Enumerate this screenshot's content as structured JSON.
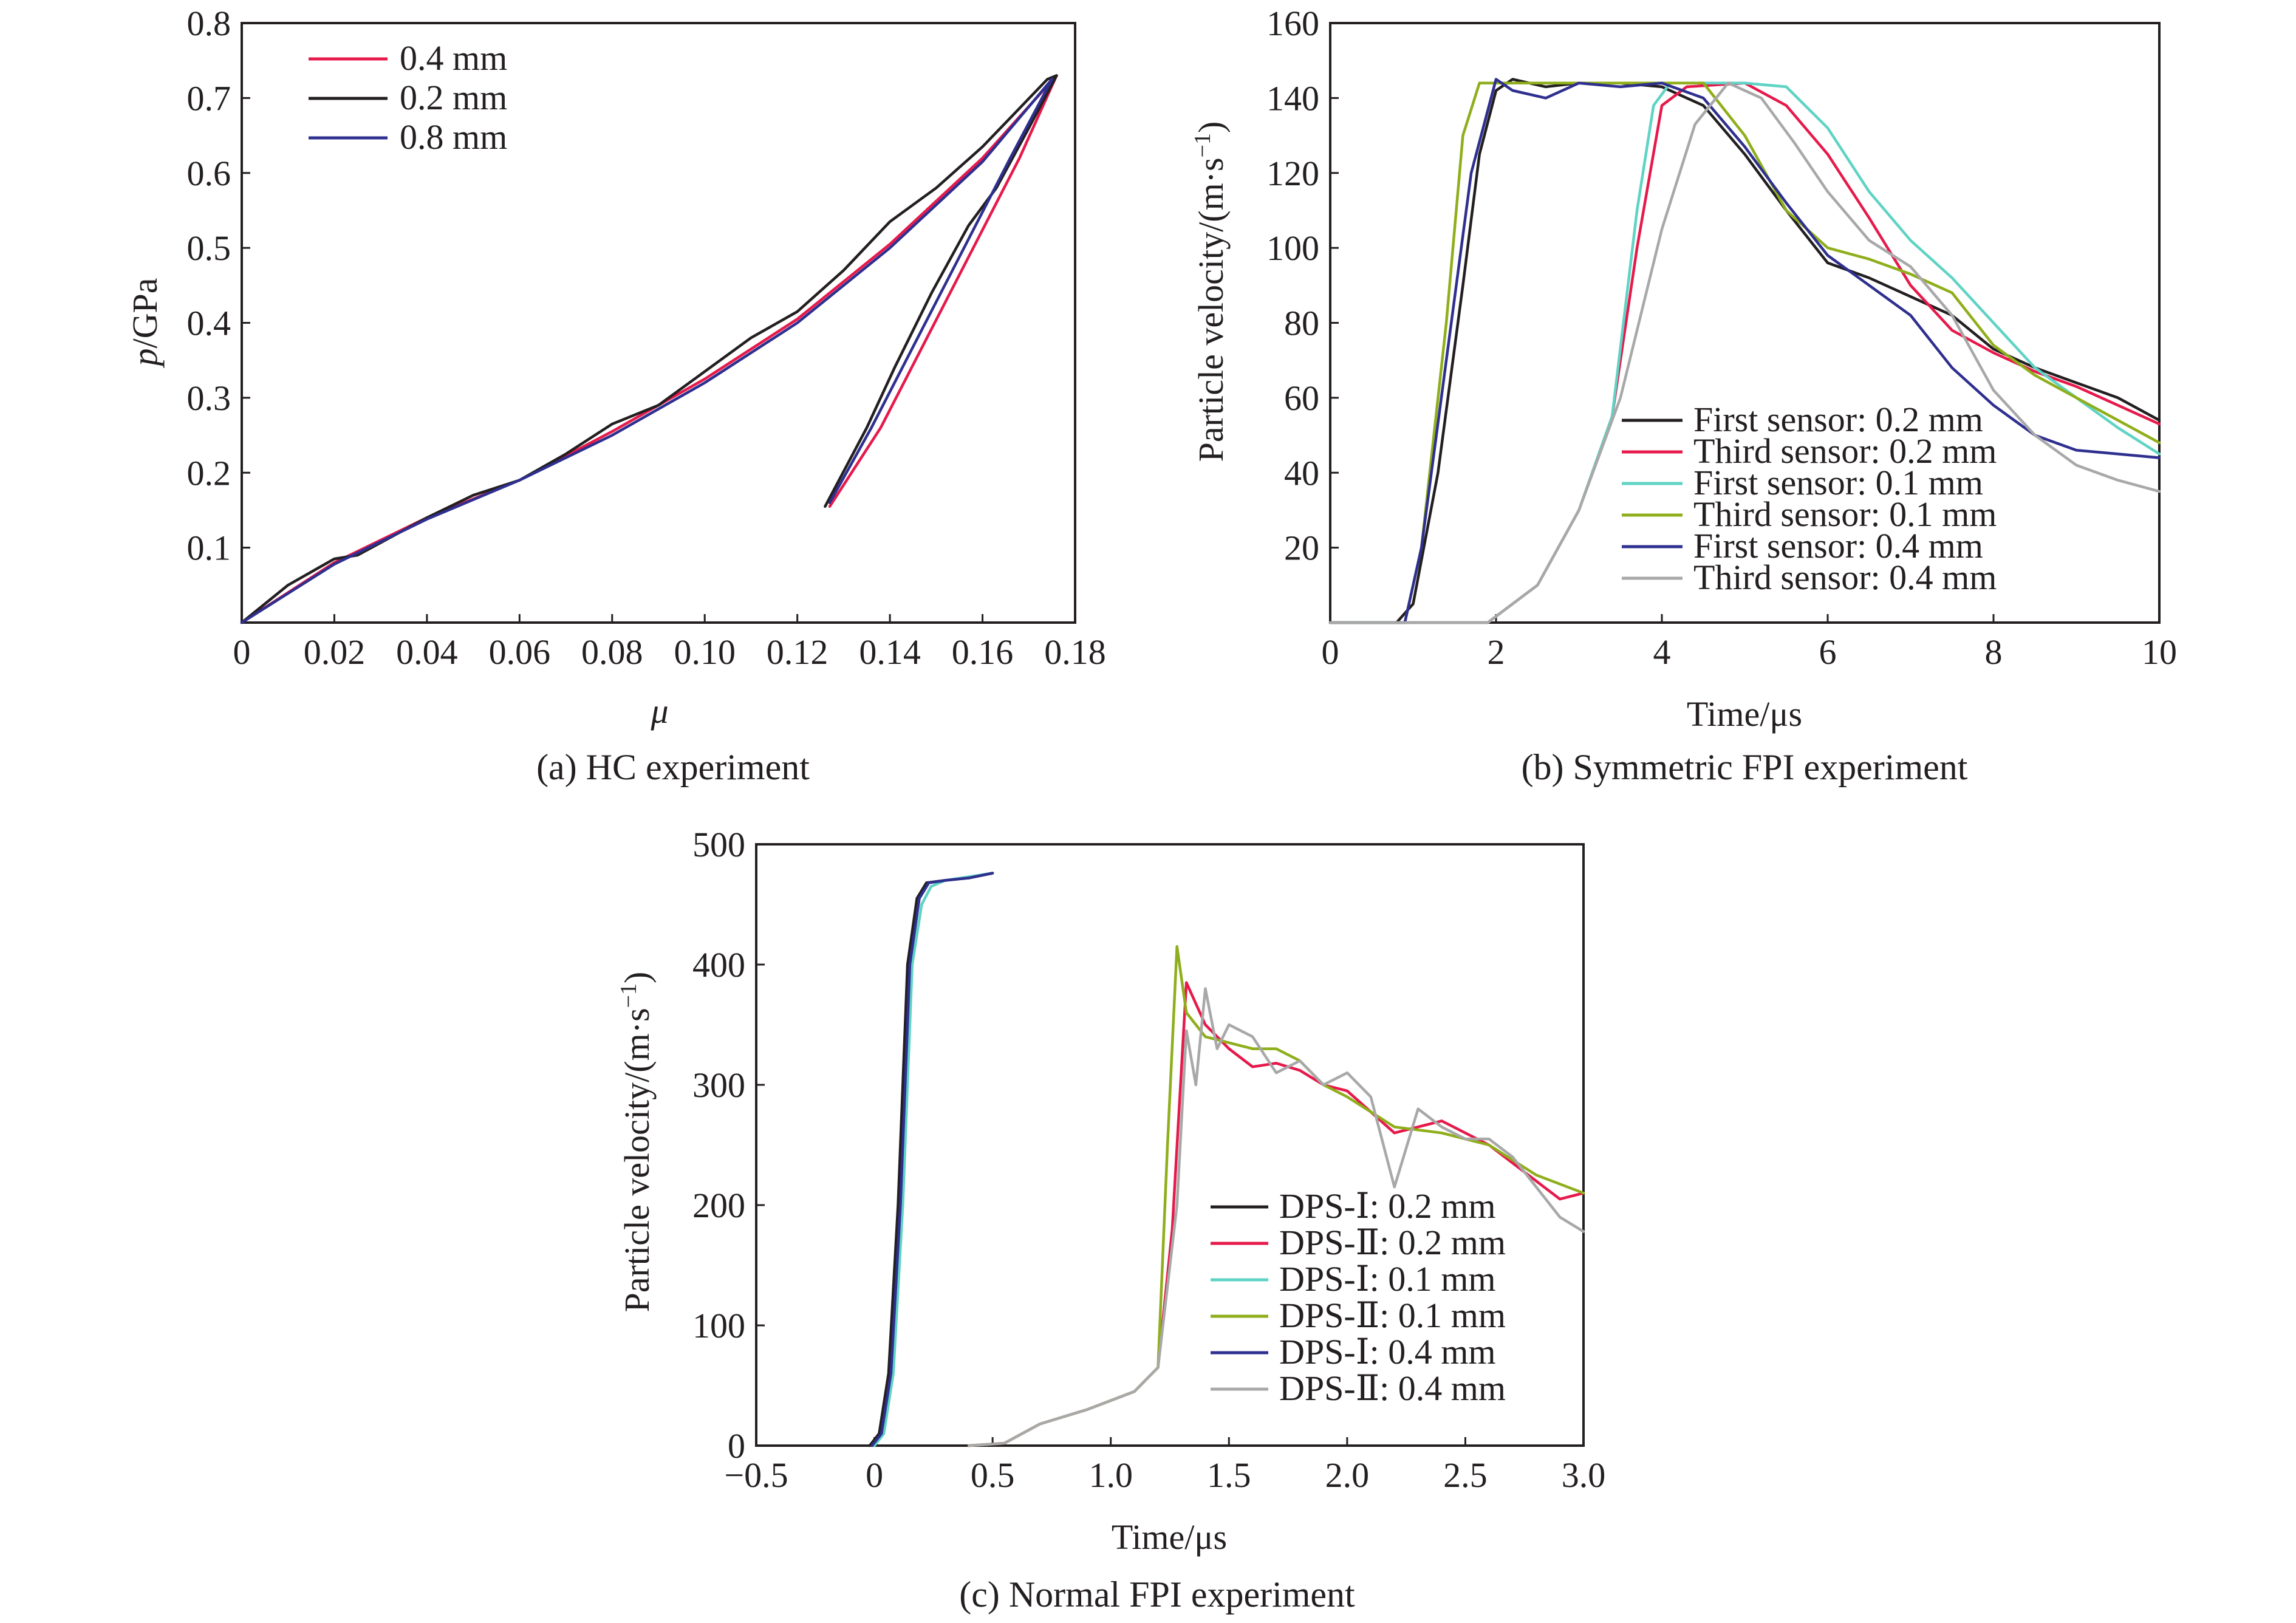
{
  "colors": {
    "black": "#231f20",
    "red": "#e6194b",
    "cyan": "#5fd3c4",
    "olive": "#8fae1b",
    "navy": "#2e2f8f",
    "gray": "#a8a8a8",
    "blue": "#1f5fbf"
  },
  "chart_data": [
    {
      "type": "line",
      "caption": "(a) HC experiment",
      "xlabel": "μ",
      "ylabel_italic": "p",
      "ylabel_rest": "/GPa",
      "xlim": [
        0,
        0.18
      ],
      "ylim": [
        0,
        0.8
      ],
      "xticks": [
        0,
        0.02,
        0.04,
        0.06,
        0.08,
        0.1,
        0.12,
        0.14,
        0.16,
        0.18
      ],
      "xtick_labels": [
        "0",
        "0.02",
        "0.04",
        "0.06",
        "0.08",
        "0.10",
        "0.12",
        "0.14",
        "0.16",
        "0.18"
      ],
      "yticks": [
        0.1,
        0.2,
        0.3,
        0.4,
        0.5,
        0.6,
        0.7,
        0.8
      ],
      "ytick_labels": [
        "0.1",
        "0.2",
        "0.3",
        "0.4",
        "0.5",
        "0.6",
        "0.7",
        "0.8"
      ],
      "legend_position": "top-left",
      "series": [
        {
          "name": "0.4 mm",
          "color": "red",
          "x": [
            0,
            0.02,
            0.04,
            0.06,
            0.08,
            0.1,
            0.12,
            0.14,
            0.16,
            0.176,
            0.168,
            0.158,
            0.148,
            0.138,
            0.127
          ],
          "y": [
            0,
            0.08,
            0.14,
            0.19,
            0.255,
            0.325,
            0.405,
            0.505,
            0.62,
            0.73,
            0.62,
            0.5,
            0.38,
            0.26,
            0.155
          ]
        },
        {
          "name": "0.2 mm",
          "color": "black",
          "x": [
            0,
            0.01,
            0.02,
            0.025,
            0.04,
            0.05,
            0.06,
            0.07,
            0.08,
            0.09,
            0.1,
            0.11,
            0.12,
            0.13,
            0.14,
            0.15,
            0.16,
            0.174,
            0.176,
            0.17,
            0.163,
            0.157,
            0.149,
            0.141,
            0.135,
            0.126
          ],
          "y": [
            0,
            0.05,
            0.085,
            0.09,
            0.14,
            0.17,
            0.19,
            0.225,
            0.265,
            0.29,
            0.335,
            0.38,
            0.415,
            0.47,
            0.535,
            0.58,
            0.635,
            0.725,
            0.73,
            0.66,
            0.58,
            0.53,
            0.44,
            0.34,
            0.26,
            0.155
          ]
        },
        {
          "name": "0.8 mm",
          "color": "navy",
          "x": [
            0,
            0.02,
            0.04,
            0.06,
            0.08,
            0.1,
            0.12,
            0.14,
            0.16,
            0.175,
            0.166,
            0.156,
            0.146,
            0.136,
            0.127
          ],
          "y": [
            0,
            0.078,
            0.138,
            0.19,
            0.25,
            0.32,
            0.4,
            0.5,
            0.615,
            0.725,
            0.62,
            0.5,
            0.38,
            0.26,
            0.16
          ]
        }
      ]
    },
    {
      "type": "line",
      "caption": "(b) Symmetric FPI experiment",
      "xlabel": "Time/μs",
      "ylabel_base": "Particle velocity/(m·s",
      "ylabel_sup": "−1",
      "ylabel_end": ")",
      "xlim": [
        0,
        10
      ],
      "ylim": [
        0,
        160
      ],
      "xticks": [
        0,
        2,
        4,
        6,
        8,
        10
      ],
      "xtick_labels": [
        "0",
        "2",
        "4",
        "6",
        "8",
        "10"
      ],
      "yticks": [
        20,
        40,
        60,
        80,
        100,
        120,
        140,
        160
      ],
      "ytick_labels": [
        "20",
        "40",
        "60",
        "80",
        "100",
        "120",
        "140",
        "160"
      ],
      "legend_position": "bottom-right",
      "series": [
        {
          "name": "First sensor: 0.2 mm",
          "color": "black",
          "x": [
            0,
            0.8,
            1.0,
            1.3,
            1.6,
            1.8,
            2.0,
            2.2,
            2.6,
            3.0,
            3.5,
            4.0,
            4.5,
            5.0,
            5.5,
            6.0,
            6.5,
            7.0,
            7.5,
            8.0,
            8.5,
            9.0,
            9.5,
            10.0
          ],
          "y": [
            0,
            0,
            5,
            40,
            90,
            125,
            142,
            145,
            143,
            144,
            144,
            143,
            138,
            125,
            110,
            96,
            92,
            87,
            82,
            73,
            68,
            64,
            60,
            54
          ]
        },
        {
          "name": "Third sensor: 0.2 mm",
          "color": "red",
          "x": [
            0,
            1.9,
            2.5,
            3.0,
            3.4,
            3.7,
            4.0,
            4.3,
            5.0,
            5.5,
            6.0,
            6.5,
            7.0,
            7.5,
            8.0,
            8.5,
            9.0,
            9.5,
            10.0
          ],
          "y": [
            0,
            0,
            10,
            30,
            55,
            100,
            138,
            143,
            144,
            138,
            125,
            108,
            90,
            78,
            72,
            67,
            63,
            58,
            53
          ]
        },
        {
          "name": "First sensor: 0.1 mm",
          "color": "cyan",
          "x": [
            0,
            1.9,
            2.5,
            3.0,
            3.4,
            3.7,
            3.9,
            4.1,
            5.0,
            5.5,
            6.0,
            6.5,
            7.0,
            7.5,
            8.0,
            8.5,
            9.0,
            9.5,
            10.0
          ],
          "y": [
            0,
            0,
            10,
            30,
            55,
            110,
            138,
            144,
            144,
            143,
            132,
            115,
            102,
            92,
            80,
            68,
            60,
            52,
            45
          ]
        },
        {
          "name": "Third sensor: 0.1 mm",
          "color": "olive",
          "x": [
            0,
            0.9,
            1.1,
            1.4,
            1.6,
            1.8,
            2.0,
            3.0,
            4.0,
            4.5,
            5.0,
            5.5,
            6.0,
            6.5,
            7.0,
            7.5,
            8.0,
            8.5,
            9.0,
            9.5,
            10.0
          ],
          "y": [
            0,
            0,
            20,
            80,
            130,
            144,
            144,
            144,
            144,
            144,
            130,
            110,
            100,
            97,
            93,
            88,
            74,
            66,
            60,
            54,
            48
          ]
        },
        {
          "name": "First sensor: 0.4 mm",
          "color": "navy",
          "x": [
            0,
            0.9,
            1.1,
            1.4,
            1.7,
            2.0,
            2.2,
            2.6,
            3.0,
            3.5,
            4.0,
            4.5,
            5.0,
            5.5,
            6.0,
            6.5,
            7.0,
            7.5,
            8.0,
            8.5,
            9.0,
            9.5,
            10.0
          ],
          "y": [
            0,
            0,
            20,
            70,
            120,
            145,
            142,
            140,
            144,
            143,
            144,
            140,
            127,
            112,
            98,
            90,
            82,
            68,
            58,
            50,
            46,
            45,
            44
          ]
        },
        {
          "name": "Third sensor: 0.4 mm",
          "color": "gray",
          "x": [
            0,
            1.9,
            2.5,
            3.0,
            3.5,
            4.0,
            4.4,
            4.8,
            5.2,
            5.6,
            6.0,
            6.5,
            7.0,
            7.5,
            8.0,
            8.5,
            9.0,
            9.5,
            10.0
          ],
          "y": [
            0,
            0,
            10,
            30,
            60,
            105,
            133,
            144,
            140,
            128,
            115,
            102,
            95,
            82,
            62,
            50,
            42,
            38,
            35
          ]
        }
      ]
    },
    {
      "type": "line",
      "caption": "(c) Normal FPI experiment",
      "xlabel": "Time/μs",
      "ylabel_base": "Particle velocity/(m·s",
      "ylabel_sup": "−1",
      "ylabel_end": ")",
      "xlim": [
        -0.5,
        3.0
      ],
      "ylim": [
        0,
        500
      ],
      "xticks": [
        -0.5,
        0,
        0.5,
        1.0,
        1.5,
        2.0,
        2.5,
        3.0
      ],
      "xtick_labels": [
        "−0.5",
        "0",
        "0.5",
        "1.0",
        "1.5",
        "2.0",
        "2.5",
        "3.0"
      ],
      "yticks": [
        0,
        100,
        200,
        300,
        400,
        500
      ],
      "ytick_labels": [
        "0",
        "100",
        "200",
        "300",
        "400",
        "500"
      ],
      "legend_position": "bottom-right",
      "series": [
        {
          "name": "DPS-Ⅰ: 0.2 mm",
          "color": "black",
          "x": [
            -0.02,
            0.02,
            0.06,
            0.1,
            0.14,
            0.18,
            0.22,
            0.3,
            0.4,
            0.5
          ],
          "y": [
            0,
            10,
            60,
            200,
            400,
            455,
            468,
            470,
            472,
            476
          ]
        },
        {
          "name": "DPS-Ⅱ: 0.2 mm",
          "color": "red",
          "x": [
            0.4,
            0.55,
            0.7,
            0.9,
            1.1,
            1.2,
            1.26,
            1.32,
            1.4,
            1.5,
            1.6,
            1.7,
            1.8,
            1.9,
            2.0,
            2.2,
            2.4,
            2.6,
            2.8,
            2.9,
            3.0
          ],
          "y": [
            0,
            2,
            18,
            30,
            45,
            65,
            180,
            385,
            350,
            330,
            315,
            318,
            312,
            300,
            295,
            260,
            270,
            250,
            220,
            205,
            210
          ]
        },
        {
          "name": "DPS-Ⅰ: 0.1 mm",
          "color": "cyan",
          "x": [
            0,
            0.04,
            0.08,
            0.12,
            0.16,
            0.2,
            0.24,
            0.3,
            0.4,
            0.5
          ],
          "y": [
            0,
            10,
            60,
            200,
            400,
            450,
            465,
            470,
            473,
            476
          ]
        },
        {
          "name": "DPS-Ⅱ: 0.1 mm",
          "color": "olive",
          "x": [
            0.4,
            0.55,
            0.7,
            0.9,
            1.1,
            1.2,
            1.24,
            1.28,
            1.32,
            1.4,
            1.5,
            1.6,
            1.7,
            1.8,
            1.9,
            2.0,
            2.2,
            2.4,
            2.6,
            2.8,
            3.0
          ],
          "y": [
            0,
            2,
            18,
            30,
            45,
            65,
            250,
            415,
            360,
            340,
            335,
            330,
            330,
            320,
            300,
            290,
            265,
            260,
            250,
            225,
            210
          ]
        },
        {
          "name": "DPS-Ⅰ: 0.4 mm",
          "color": "navy",
          "x": [
            -0.01,
            0.03,
            0.07,
            0.11,
            0.15,
            0.19,
            0.23,
            0.3,
            0.4,
            0.5
          ],
          "y": [
            0,
            10,
            60,
            200,
            400,
            455,
            468,
            470,
            472,
            476
          ]
        },
        {
          "name": "DPS-Ⅱ: 0.4 mm",
          "color": "gray",
          "x": [
            0.4,
            0.55,
            0.7,
            0.9,
            1.1,
            1.2,
            1.28,
            1.32,
            1.36,
            1.4,
            1.45,
            1.5,
            1.6,
            1.7,
            1.8,
            1.9,
            2.0,
            2.1,
            2.2,
            2.3,
            2.4,
            2.5,
            2.6,
            2.7,
            2.8,
            2.9,
            3.0
          ],
          "y": [
            0,
            2,
            18,
            30,
            45,
            65,
            200,
            345,
            300,
            380,
            330,
            350,
            340,
            310,
            320,
            300,
            310,
            290,
            215,
            280,
            265,
            255,
            255,
            240,
            215,
            190,
            178
          ]
        }
      ]
    }
  ]
}
